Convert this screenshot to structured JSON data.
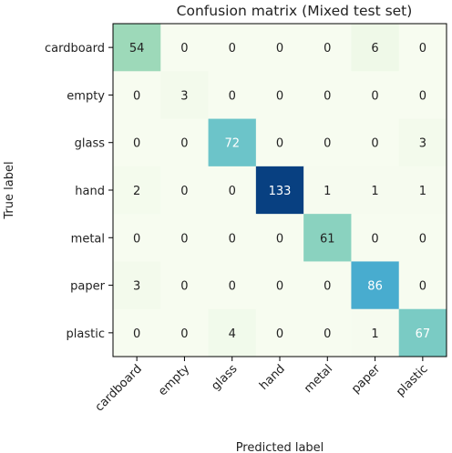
{
  "chart_data": {
    "type": "heatmap",
    "title": "Confusion matrix (Mixed test set)",
    "xlabel": "Predicted label",
    "ylabel": "True label",
    "x_categories": [
      "cardboard",
      "empty",
      "glass",
      "hand",
      "metal",
      "paper",
      "plastic"
    ],
    "y_categories": [
      "cardboard",
      "empty",
      "glass",
      "hand",
      "metal",
      "paper",
      "plastic"
    ],
    "values": [
      [
        54,
        0,
        0,
        0,
        0,
        6,
        0
      ],
      [
        0,
        3,
        0,
        0,
        0,
        0,
        0
      ],
      [
        0,
        0,
        72,
        0,
        0,
        0,
        3
      ],
      [
        2,
        0,
        0,
        133,
        1,
        1,
        1
      ],
      [
        0,
        0,
        0,
        0,
        61,
        0,
        0
      ],
      [
        3,
        0,
        0,
        0,
        0,
        86,
        0
      ],
      [
        0,
        0,
        4,
        0,
        0,
        1,
        67
      ]
    ],
    "value_range": [
      0,
      133
    ],
    "colormap": "GnBu",
    "colors": [
      "#f7fcf0",
      "#e0f3db",
      "#ccebc5",
      "#a8ddb5",
      "#7bccc4",
      "#4eb3d3",
      "#2b8cbe",
      "#0868ac",
      "#084081"
    ],
    "grid": false,
    "legend": "none"
  }
}
